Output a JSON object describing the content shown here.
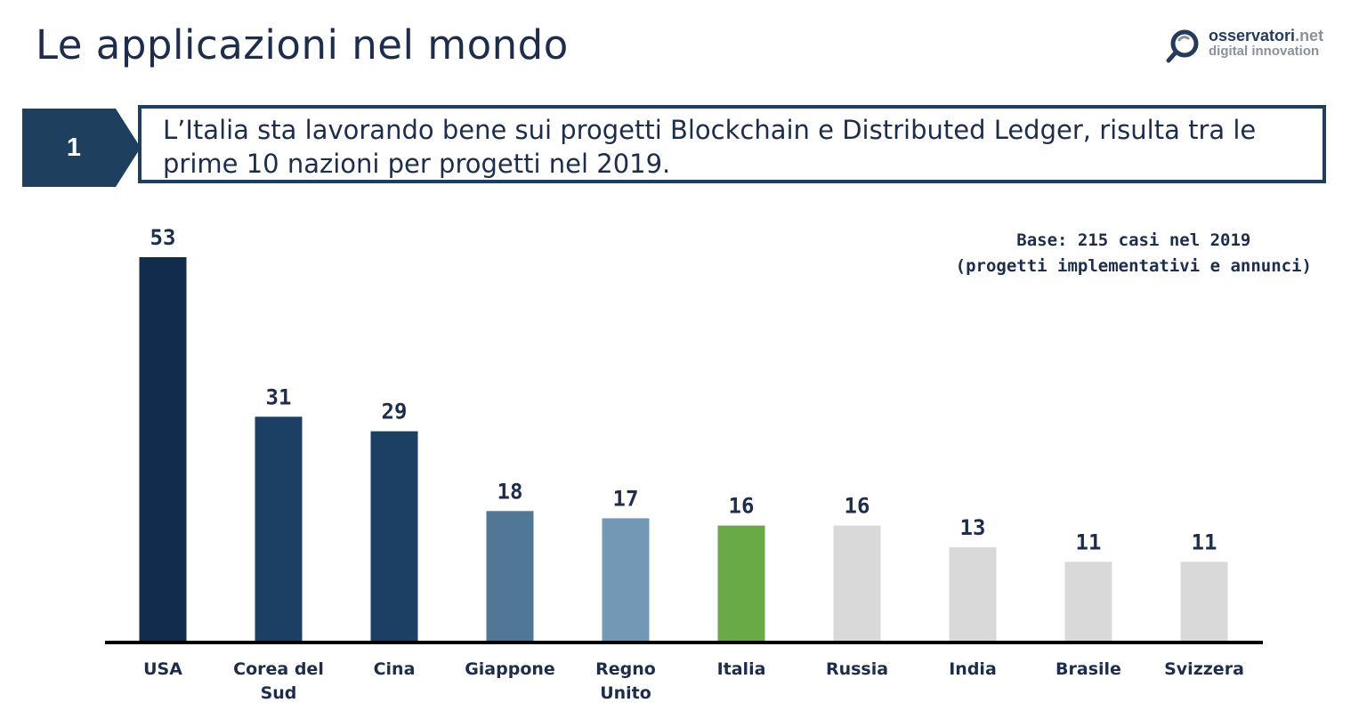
{
  "page": {
    "title": "Le applicazioni nel mondo"
  },
  "logo": {
    "name": "osservatori",
    "tld": ".net",
    "tagline": "digital innovation"
  },
  "callout": {
    "number": "1",
    "text": "L’Italia sta lavorando bene sui progetti Blockchain e Distributed Ledger, risulta tra le prime 10 nazioni per progetti nel 2019."
  },
  "note": {
    "line1": "Base: 215 casi nel 2019",
    "line2": "(progetti implementativi e annunci)"
  },
  "colors": {
    "navy_dark": "#122c4d",
    "navy": "#1c4064",
    "steel": "#517796",
    "light_steel": "#7298b6",
    "green": "#6aaa46",
    "grey": "#d9d9d9",
    "text": "#1d2d4b"
  },
  "chart_data": {
    "type": "bar",
    "title": "",
    "xlabel": "",
    "ylabel": "",
    "ylim": [
      0,
      53
    ],
    "grid": false,
    "categories": [
      "USA",
      "Corea del Sud",
      "Cina",
      "Giappone",
      "Regno Unito",
      "Italia",
      "Russia",
      "India",
      "Brasile",
      "Svizzera"
    ],
    "category_lines": [
      [
        "USA"
      ],
      [
        "Corea del",
        "Sud"
      ],
      [
        "Cina"
      ],
      [
        "Giappone"
      ],
      [
        "Regno",
        "Unito"
      ],
      [
        "Italia"
      ],
      [
        "Russia"
      ],
      [
        "India"
      ],
      [
        "Brasile"
      ],
      [
        "Svizzera"
      ]
    ],
    "values": [
      53,
      31,
      29,
      18,
      17,
      16,
      16,
      13,
      11,
      11
    ],
    "bar_colors": [
      "#122c4d",
      "#1c4064",
      "#1c4064",
      "#517796",
      "#7298b6",
      "#6aaa46",
      "#d9d9d9",
      "#d9d9d9",
      "#d9d9d9",
      "#d9d9d9"
    ]
  }
}
